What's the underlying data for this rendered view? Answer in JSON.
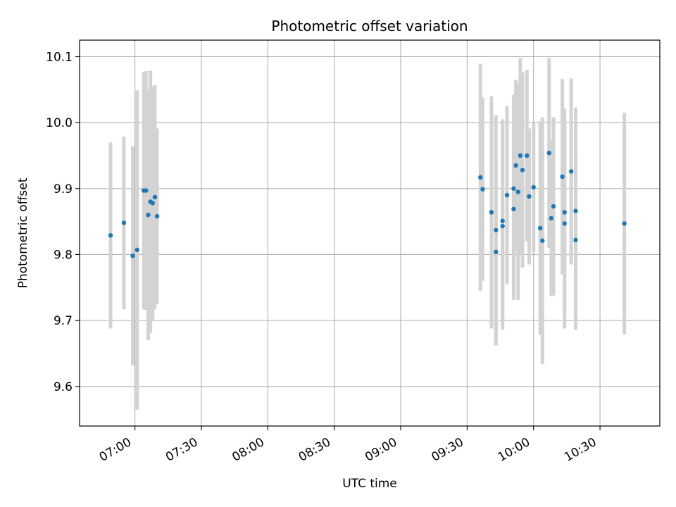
{
  "chart_data": {
    "type": "scatter",
    "title": "Photometric offset variation",
    "xlabel": "UTC time",
    "ylabel": "Photometric offset",
    "xlim": [
      "06:35",
      "10:57"
    ],
    "ylim": [
      9.54,
      10.125
    ],
    "grid": true,
    "x_ticks": [
      "07:00",
      "07:30",
      "08:00",
      "08:30",
      "09:00",
      "09:30",
      "10:00",
      "10:30"
    ],
    "y_ticks": [
      "9.6",
      "9.7",
      "9.8",
      "9.9",
      "10.0",
      "10.1"
    ],
    "colors": {
      "point": "#1f77b4",
      "errorbar": "#d3d3d3",
      "grid": "#b0b0b0"
    },
    "series": [
      {
        "points": [
          {
            "x": "06:49",
            "y": 9.829,
            "err": 0.141
          },
          {
            "x": "06:55",
            "y": 9.848,
            "err": 0.131
          },
          {
            "x": "06:59",
            "y": 9.798,
            "err": 0.166
          },
          {
            "x": "07:01",
            "y": 9.807,
            "err": 0.242
          },
          {
            "x": "07:04",
            "y": 9.897,
            "err": 0.18
          },
          {
            "x": "07:05",
            "y": 9.897,
            "err": 0.181
          },
          {
            "x": "07:06",
            "y": 9.86,
            "err": 0.19
          },
          {
            "x": "07:07",
            "y": 9.88,
            "err": 0.199
          },
          {
            "x": "07:08",
            "y": 9.878,
            "err": 0.177
          },
          {
            "x": "07:09",
            "y": 9.887,
            "err": 0.17
          },
          {
            "x": "07:10",
            "y": 9.858,
            "err": 0.133
          },
          {
            "x": "09:36",
            "y": 9.917,
            "err": 0.172
          },
          {
            "x": "09:37",
            "y": 9.899,
            "err": 0.139
          },
          {
            "x": "09:41",
            "y": 9.864,
            "err": 0.176
          },
          {
            "x": "09:43",
            "y": 9.837,
            "err": 0.174
          },
          {
            "x": "09:43",
            "y": 9.804,
            "err": 0.142
          },
          {
            "x": "09:46",
            "y": 9.851,
            "err": 0.154
          },
          {
            "x": "09:46",
            "y": 9.843,
            "err": 0.157
          },
          {
            "x": "09:48",
            "y": 9.89,
            "err": 0.135
          },
          {
            "x": "09:51",
            "y": 9.9,
            "err": 0.142
          },
          {
            "x": "09:51",
            "y": 9.869,
            "err": 0.138
          },
          {
            "x": "09:52",
            "y": 9.935,
            "err": 0.13
          },
          {
            "x": "09:53",
            "y": 9.895,
            "err": 0.164
          },
          {
            "x": "09:54",
            "y": 9.95,
            "err": 0.148
          },
          {
            "x": "09:55",
            "y": 9.928,
            "err": 0.148
          },
          {
            "x": "09:57",
            "y": 9.95,
            "err": 0.13
          },
          {
            "x": "09:58",
            "y": 9.888,
            "err": 0.103
          },
          {
            "x": "10:00",
            "y": 9.902,
            "err": 0.098
          },
          {
            "x": "10:03",
            "y": 9.84,
            "err": 0.162
          },
          {
            "x": "10:04",
            "y": 9.821,
            "err": 0.187
          },
          {
            "x": "10:07",
            "y": 9.954,
            "err": 0.144
          },
          {
            "x": "10:08",
            "y": 9.855,
            "err": 0.118
          },
          {
            "x": "10:09",
            "y": 9.873,
            "err": 0.135
          },
          {
            "x": "10:13",
            "y": 9.918,
            "err": 0.148
          },
          {
            "x": "10:14",
            "y": 9.864,
            "err": 0.157
          },
          {
            "x": "10:14",
            "y": 9.847,
            "err": 0.159
          },
          {
            "x": "10:17",
            "y": 9.926,
            "err": 0.141
          },
          {
            "x": "10:19",
            "y": 9.866,
            "err": 0.157
          },
          {
            "x": "10:19",
            "y": 9.822,
            "err": 0.136
          },
          {
            "x": "10:41",
            "y": 9.847,
            "err": 0.168
          }
        ]
      }
    ]
  }
}
